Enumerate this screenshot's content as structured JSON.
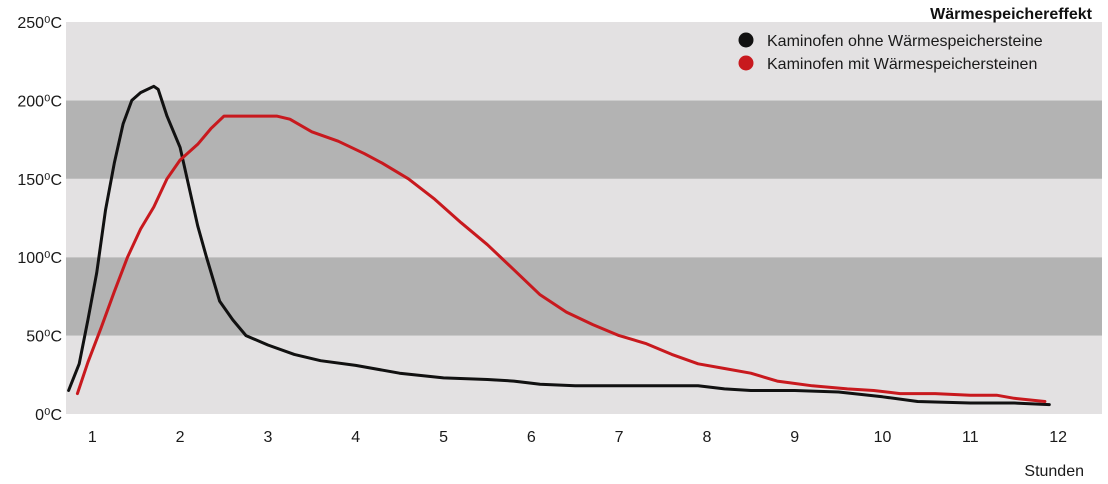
{
  "chart_data": {
    "type": "line",
    "title": "Wärmespeichereffekt",
    "xlabel": "Stunden",
    "ylabel": "",
    "xlim": [
      0.7,
      12.5
    ],
    "ylim": [
      0,
      250
    ],
    "x_ticks": [
      1,
      2,
      3,
      4,
      5,
      6,
      7,
      8,
      9,
      10,
      11,
      12
    ],
    "y_ticks": [
      0,
      50,
      100,
      150,
      200,
      250
    ],
    "y_tick_labels": [
      "0⁰C",
      "50⁰C",
      "100⁰C",
      "150⁰C",
      "200⁰C",
      "250⁰C"
    ],
    "background_bands": [
      {
        "from": 0,
        "to": 50,
        "color": "#e3e1e2"
      },
      {
        "from": 50,
        "to": 100,
        "color": "#b3b3b3"
      },
      {
        "from": 100,
        "to": 150,
        "color": "#e3e1e2"
      },
      {
        "from": 150,
        "to": 200,
        "color": "#b3b3b3"
      },
      {
        "from": 200,
        "to": 250,
        "color": "#e3e1e2"
      }
    ],
    "legend_position": "top-right",
    "series": [
      {
        "name": "Kaminofen ohne Wärmespeichersteine",
        "color": "#111111",
        "points": [
          [
            0.73,
            15
          ],
          [
            0.85,
            32
          ],
          [
            0.95,
            60
          ],
          [
            1.05,
            90
          ],
          [
            1.15,
            130
          ],
          [
            1.25,
            160
          ],
          [
            1.35,
            185
          ],
          [
            1.45,
            200
          ],
          [
            1.55,
            205
          ],
          [
            1.7,
            209
          ],
          [
            1.75,
            207
          ],
          [
            1.85,
            190
          ],
          [
            2.0,
            170
          ],
          [
            2.1,
            145
          ],
          [
            2.2,
            120
          ],
          [
            2.3,
            100
          ],
          [
            2.45,
            72
          ],
          [
            2.6,
            60
          ],
          [
            2.75,
            50
          ],
          [
            3.0,
            44
          ],
          [
            3.3,
            38
          ],
          [
            3.6,
            34
          ],
          [
            4.0,
            31
          ],
          [
            4.5,
            26
          ],
          [
            5.0,
            23
          ],
          [
            5.5,
            22
          ],
          [
            5.8,
            21
          ],
          [
            6.1,
            19
          ],
          [
            6.5,
            18
          ],
          [
            7.0,
            18
          ],
          [
            7.5,
            18
          ],
          [
            7.9,
            18
          ],
          [
            8.2,
            16
          ],
          [
            8.5,
            15
          ],
          [
            9.0,
            15
          ],
          [
            9.5,
            14
          ],
          [
            10.0,
            11
          ],
          [
            10.4,
            8
          ],
          [
            11.0,
            7
          ],
          [
            11.5,
            7
          ],
          [
            11.9,
            6
          ]
        ]
      },
      {
        "name": "Kaminofen mit Wärmespeichersteinen",
        "color": "#c8191e",
        "points": [
          [
            0.83,
            13
          ],
          [
            0.95,
            33
          ],
          [
            1.1,
            55
          ],
          [
            1.25,
            78
          ],
          [
            1.4,
            100
          ],
          [
            1.55,
            118
          ],
          [
            1.7,
            132
          ],
          [
            1.85,
            150
          ],
          [
            2.0,
            162
          ],
          [
            2.2,
            172
          ],
          [
            2.35,
            182
          ],
          [
            2.5,
            190
          ],
          [
            2.8,
            190
          ],
          [
            3.1,
            190
          ],
          [
            3.25,
            188
          ],
          [
            3.5,
            180
          ],
          [
            3.8,
            174
          ],
          [
            4.1,
            166
          ],
          [
            4.3,
            160
          ],
          [
            4.6,
            150
          ],
          [
            4.9,
            137
          ],
          [
            5.2,
            122
          ],
          [
            5.5,
            108
          ],
          [
            5.8,
            92
          ],
          [
            6.1,
            76
          ],
          [
            6.4,
            65
          ],
          [
            6.7,
            57
          ],
          [
            7.0,
            50
          ],
          [
            7.3,
            45
          ],
          [
            7.6,
            38
          ],
          [
            7.9,
            32
          ],
          [
            8.2,
            29
          ],
          [
            8.5,
            26
          ],
          [
            8.8,
            21
          ],
          [
            9.2,
            18
          ],
          [
            9.6,
            16
          ],
          [
            9.9,
            15
          ],
          [
            10.2,
            13
          ],
          [
            10.6,
            13
          ],
          [
            11.0,
            12
          ],
          [
            11.3,
            12
          ],
          [
            11.5,
            10
          ],
          [
            11.85,
            8
          ]
        ]
      }
    ]
  }
}
